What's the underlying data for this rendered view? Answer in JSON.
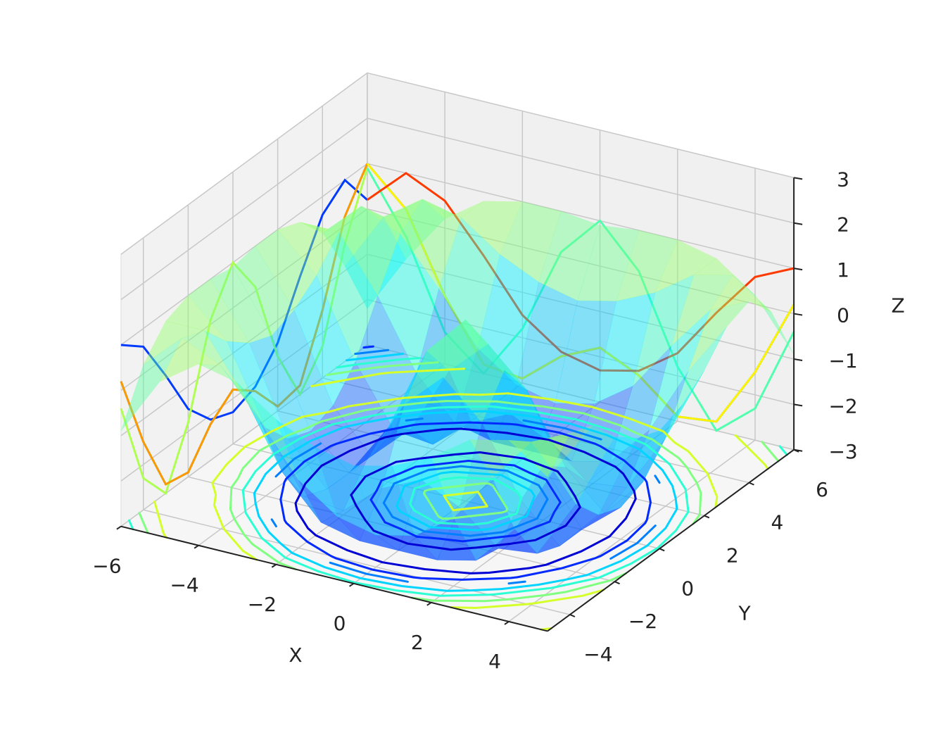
{
  "chart_data": {
    "type": "surface3d",
    "x_label": "X",
    "y_label": "Y",
    "z_label": "Z",
    "xlim": [
      -6,
      5
    ],
    "ylim": [
      -5,
      6
    ],
    "zlim": [
      -3,
      3
    ],
    "xticks": [
      {
        "value": -6,
        "label": "−6"
      },
      {
        "value": -4,
        "label": "−4"
      },
      {
        "value": -2,
        "label": "−2"
      },
      0,
      2,
      4
    ],
    "yticks": [
      {
        "value": -4,
        "label": "−4"
      },
      {
        "value": -2,
        "label": "−2"
      },
      0,
      2,
      4,
      6
    ],
    "zticks": [
      {
        "value": -3,
        "label": "−3"
      },
      {
        "value": -2,
        "label": "−2"
      },
      {
        "value": -1,
        "label": "−1"
      },
      0,
      1,
      2,
      3
    ],
    "grid": true,
    "colormap": "jet",
    "surface_alpha": 0.45,
    "x": [
      -6,
      -5,
      -4,
      -3,
      -2,
      -1,
      0,
      1,
      2,
      3,
      4,
      5
    ],
    "y": [
      -5,
      -4,
      -3,
      -2,
      -1,
      0,
      1,
      2,
      3,
      4,
      5,
      6
    ],
    "z": [
      [
        -0.9,
        0.4,
        1.0,
        0.8,
        0.2,
        -0.2,
        -0.4,
        -0.2,
        0.2,
        0.8,
        1.0,
        0.4
      ],
      [
        0.2,
        1.0,
        0.6,
        -0.4,
        -1.5,
        -2.1,
        -2.3,
        -2.1,
        -1.5,
        -0.4,
        0.6,
        1.0
      ],
      [
        0.8,
        0.8,
        -0.4,
        -1.9,
        -2.8,
        -3.0,
        -3.0,
        -3.0,
        -2.8,
        -1.9,
        -0.4,
        0.8
      ],
      [
        1.0,
        0.2,
        -1.5,
        -2.8,
        -2.9,
        -2.2,
        -1.8,
        -2.2,
        -2.9,
        -2.8,
        -1.5,
        0.2
      ],
      [
        1.0,
        -0.2,
        -2.1,
        -3.0,
        -2.2,
        -0.7,
        0.1,
        -0.7,
        -2.2,
        -3.0,
        -2.1,
        -0.2
      ],
      [
        0.9,
        -0.4,
        -2.3,
        -3.0,
        -1.8,
        0.1,
        1.0,
        0.1,
        -1.8,
        -3.0,
        -2.3,
        -0.4
      ],
      [
        1.0,
        -0.2,
        -2.1,
        -3.0,
        -2.2,
        -0.7,
        0.1,
        -0.7,
        -2.2,
        -3.0,
        -2.1,
        -0.2
      ],
      [
        1.0,
        0.2,
        -1.5,
        -2.8,
        -2.9,
        -2.2,
        -1.8,
        -2.2,
        -2.9,
        -2.8,
        -1.5,
        0.2
      ],
      [
        0.8,
        0.8,
        -0.4,
        -1.9,
        -2.8,
        -3.0,
        -3.0,
        -3.0,
        -2.8,
        -1.9,
        -0.4,
        0.8
      ],
      [
        0.2,
        1.0,
        0.6,
        -0.4,
        -1.5,
        -2.1,
        -2.3,
        -2.1,
        -1.5,
        -0.4,
        0.6,
        1.0
      ],
      [
        -0.9,
        0.4,
        1.0,
        0.8,
        0.2,
        -0.2,
        -0.4,
        -0.2,
        0.2,
        0.8,
        1.0,
        0.4
      ],
      [
        -2.2,
        -0.9,
        0.2,
        0.8,
        1.0,
        1.0,
        0.9,
        1.0,
        1.0,
        0.8,
        0.2,
        -0.9
      ]
    ],
    "contour_levels": [
      -2.5,
      -2,
      -1.5,
      -1,
      -0.5,
      0,
      0.5
    ],
    "wall_x_levels": [
      -4,
      -2,
      0,
      2
    ],
    "wall_y_levels": [
      -2,
      0,
      2,
      4
    ]
  }
}
